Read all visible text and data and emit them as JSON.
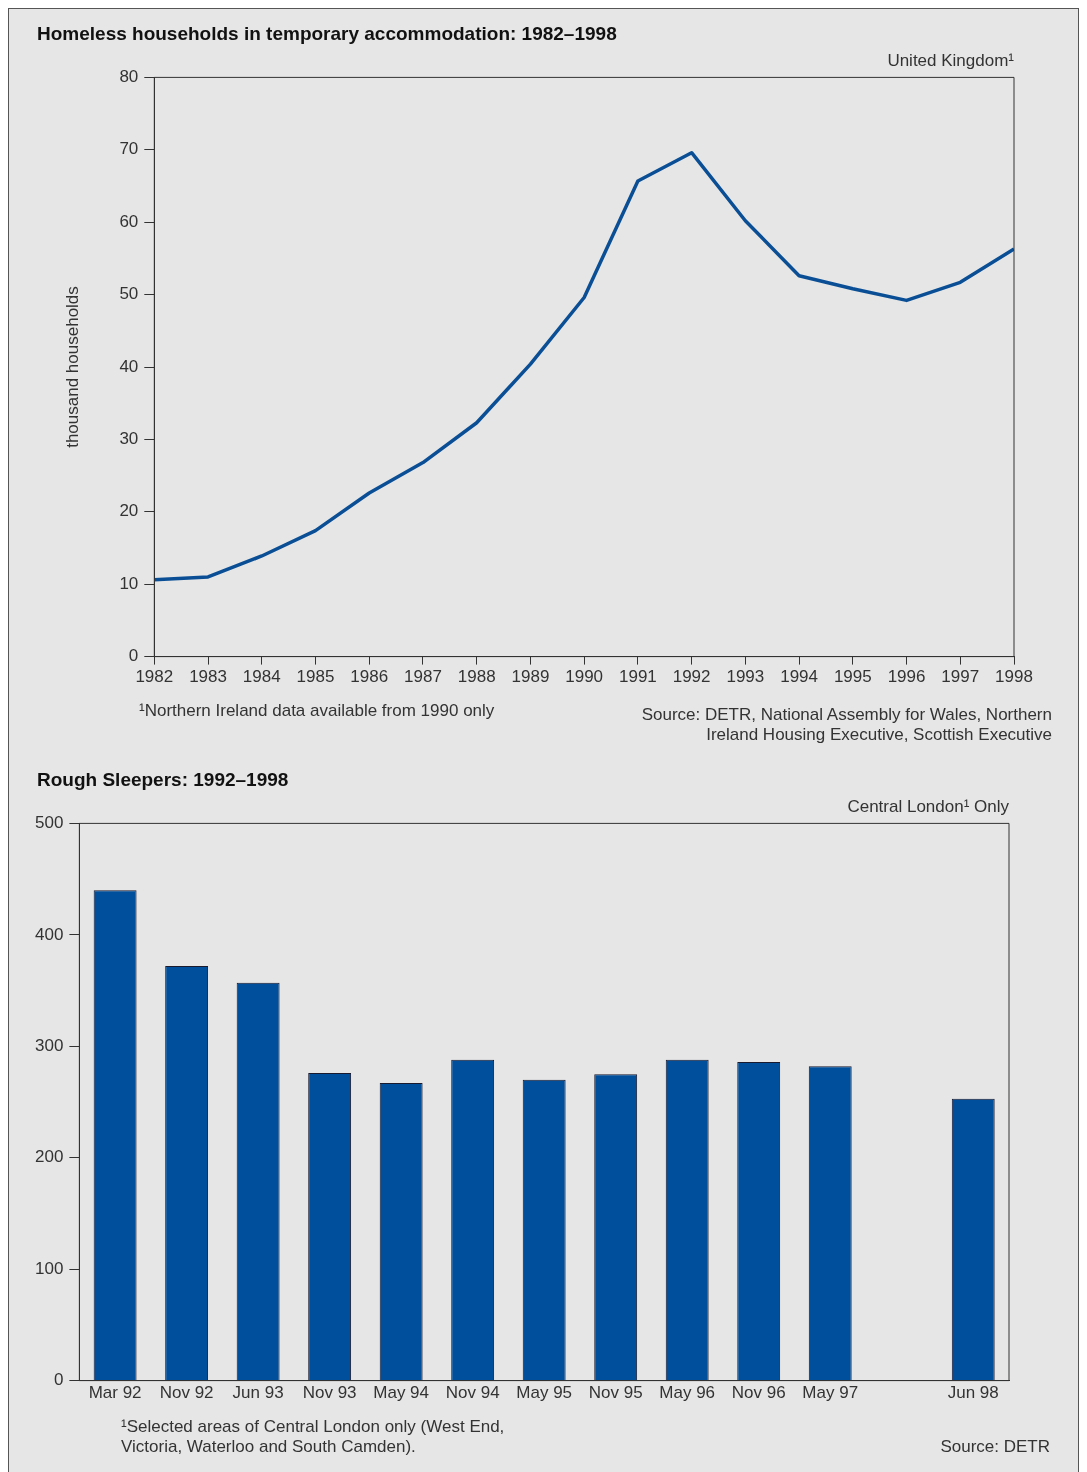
{
  "chart_data": [
    {
      "type": "line",
      "title": "Homeless households in temporary accommodation: 1982–1998",
      "subtitle": "United Kingdom¹",
      "ylabel": "thousand households",
      "x": [
        1982,
        1983,
        1984,
        1985,
        1986,
        1987,
        1988,
        1989,
        1990,
        1991,
        1992,
        1993,
        1994,
        1995,
        1996,
        1997,
        1998
      ],
      "series": [
        {
          "color": "#0a4f96",
          "values": [
            10.6,
            11.0,
            13.9,
            17.4,
            22.6,
            26.8,
            32.3,
            40.4,
            49.6,
            65.7,
            69.6,
            60.2,
            52.6,
            50.8,
            49.2,
            51.7,
            56.3
          ]
        }
      ],
      "xlim": [
        1982,
        1998
      ],
      "xticks": [
        1982,
        1983,
        1984,
        1985,
        1986,
        1987,
        1988,
        1989,
        1990,
        1991,
        1992,
        1993,
        1994,
        1995,
        1996,
        1997,
        1998
      ],
      "ylim": [
        0,
        80
      ],
      "yticks": [
        0,
        10,
        20,
        30,
        40,
        50,
        60,
        70,
        80
      ],
      "grid": false,
      "marker": "none",
      "annotations": [
        "¹Northern Ireland data available from 1990 only",
        "Source: DETR, National Assembly for Wales, Northern Ireland Housing Executive, Scottish Executive"
      ]
    },
    {
      "type": "bar",
      "title": "Rough Sleepers: 1992–1998",
      "subtitle": "Central London¹ Only",
      "categories": [
        "Mar 92",
        "Nov 92",
        "Jun 93",
        "Nov 93",
        "May 94",
        "Nov 94",
        "May 95",
        "Nov 95",
        "May 96",
        "Nov 96",
        "May 97",
        null,
        "Jun 98"
      ],
      "series": [
        {
          "color": "#004f9c",
          "values": [
            440,
            372,
            357,
            276,
            267,
            288,
            270,
            275,
            288,
            286,
            282,
            null,
            253
          ]
        }
      ],
      "ylim": [
        0,
        500
      ],
      "yticks": [
        0,
        100,
        200,
        300,
        400,
        500
      ],
      "grid": false,
      "annotations": [
        "¹Selected areas of Central London only (West End, Victoria, Waterloo and South Camden).",
        "Source: DETR"
      ]
    }
  ]
}
